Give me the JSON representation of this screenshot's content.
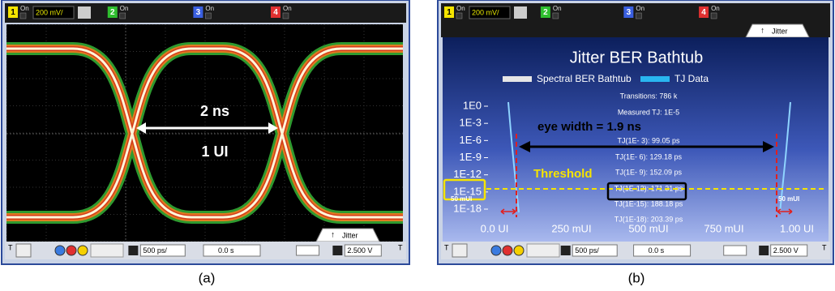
{
  "panels": [
    {
      "top_bar": {
        "channels": [
          {
            "number": "1",
            "state": "On",
            "scale": "200 mV/"
          },
          {
            "number": "2",
            "state": "On"
          },
          {
            "number": "3",
            "state": "On"
          },
          {
            "number": "4",
            "state": "On"
          }
        ]
      },
      "annotations": {
        "period": "2 ns",
        "unit_interval": "1 UI"
      },
      "tab": "Jitter",
      "bottom_bar": {
        "trigger_marker": "T",
        "timebase": "500 ps/",
        "delay": "0.0 s",
        "trigger_level": "2.500 V"
      },
      "caption": "(a)"
    },
    {
      "top_bar": {
        "channels": [
          {
            "number": "1",
            "state": "On",
            "scale": "200 mV/"
          },
          {
            "number": "2",
            "state": "On"
          },
          {
            "number": "3",
            "state": "On"
          },
          {
            "number": "4",
            "state": "On"
          }
        ]
      },
      "tab": "Jitter",
      "plot": {
        "title": "Jitter BER Bathtub",
        "legend": [
          "Spectral BER Bathtub",
          "TJ Data"
        ],
        "y_labels": [
          "1E0",
          "1E-3",
          "1E-6",
          "1E-9",
          "1E-12",
          "1E-15",
          "1E-18"
        ],
        "x_labels": [
          "0.0 UI",
          "250 mUI",
          "500 mUI",
          "750 mUI",
          "1.00 UI"
        ],
        "stats": [
          "Transitions: 786 k",
          "Measured TJ: 1E-5",
          "TJ(1E- 3): 99.05 ps",
          "TJ(1E- 6): 129.18 ps",
          "TJ(1E- 9): 152.09 ps",
          "TJ(1E-12): 171.31 ps",
          "TJ(1E-15): 188.18 ps",
          "TJ(1E-18): 203.39 ps"
        ],
        "annotations": {
          "eye_width": "eye width = 1.9 ns",
          "threshold": "Threshold",
          "margin_left": "50 mUI",
          "margin_right": "50 mUI"
        }
      },
      "bottom_bar": {
        "trigger_marker": "T",
        "timebase": "500 ps/",
        "delay": "0.0 s",
        "trigger_level": "2.500 V"
      },
      "caption": "(b)"
    }
  ]
}
